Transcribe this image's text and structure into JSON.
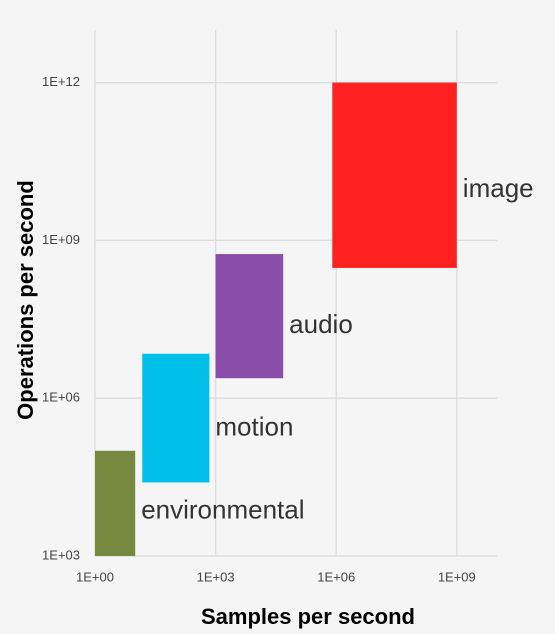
{
  "chart_data": {
    "type": "rectangle",
    "x_label": "Samples per second",
    "y_label": "Operations per second",
    "log_x": true,
    "log_y": true,
    "grid": true,
    "xlim": [
      1,
      10000000000
    ],
    "ylim": [
      1000,
      10000000000000
    ],
    "xticks": [
      {
        "value": 1,
        "label": "1E+00"
      },
      {
        "value": 1000,
        "label": "1E+03"
      },
      {
        "value": 1000000,
        "label": "1E+06"
      },
      {
        "value": 1000000000,
        "label": "1E+09"
      }
    ],
    "yticks": [
      {
        "value": 1000,
        "label": "1E+03"
      },
      {
        "value": 1000000,
        "label": "1E+06"
      },
      {
        "value": 1000000000,
        "label": "1E+09"
      },
      {
        "value": 1000000000000,
        "label": "1E+12"
      }
    ],
    "series": [
      {
        "name": "environmental",
        "color": "#76893f",
        "x": [
          1,
          10
        ],
        "y": [
          1000,
          100000
        ]
      },
      {
        "name": "motion",
        "color": "#00bfe8",
        "x": [
          15,
          700
        ],
        "y": [
          25000,
          7000000
        ]
      },
      {
        "name": "audio",
        "color": "#8b4ea8",
        "x": [
          1000,
          48000
        ],
        "y": [
          2400000,
          550000000
        ]
      },
      {
        "name": "image",
        "color": "#ff2020",
        "x": [
          800000,
          1000000000
        ],
        "y": [
          300000000,
          1000000000000
        ]
      }
    ]
  }
}
